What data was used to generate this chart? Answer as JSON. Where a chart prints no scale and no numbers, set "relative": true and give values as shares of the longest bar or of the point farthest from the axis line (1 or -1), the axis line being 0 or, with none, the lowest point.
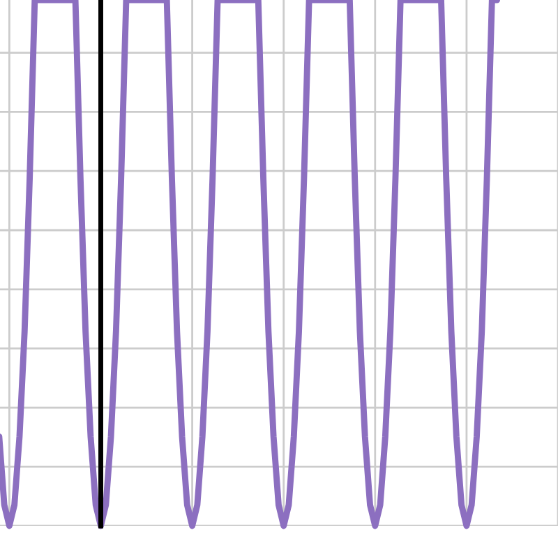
{
  "chart_data": {
    "type": "line",
    "relative": true,
    "grid": true,
    "categories": [
      null,
      null,
      null,
      null,
      null,
      null,
      null,
      null,
      null,
      null,
      null,
      null,
      null,
      null,
      null,
      null,
      null,
      null,
      null,
      null,
      null,
      null,
      null,
      null,
      null,
      null,
      null,
      null,
      null,
      null,
      null,
      null,
      null,
      null,
      null,
      null,
      null,
      null,
      null,
      null,
      null,
      null,
      null,
      null,
      null,
      null,
      null,
      null,
      null,
      null,
      null,
      null,
      null,
      null,
      null,
      null,
      null,
      null,
      null,
      null,
      null,
      null,
      null,
      null,
      null,
      null,
      null,
      null,
      null,
      null,
      null,
      null,
      null,
      null,
      null,
      null,
      null,
      null,
      null,
      null,
      null,
      null,
      null,
      null,
      null,
      null,
      null,
      null,
      null,
      null,
      null,
      null,
      null,
      null,
      null,
      null,
      null,
      null,
      null
    ],
    "series": [
      {
        "color": "#8c6fc0",
        "values": [
          0.17,
          0.04,
          0,
          0.04,
          0.17,
          0.37,
          0.66,
          1,
          1,
          1,
          1,
          1,
          1,
          1,
          1,
          1,
          0.66,
          0.37,
          0.17,
          0.04,
          0,
          0.04,
          0.17,
          0.37,
          0.66,
          1,
          1,
          1,
          1,
          1,
          1,
          1,
          1,
          1,
          0.66,
          0.37,
          0.17,
          0.04,
          0,
          0.04,
          0.17,
          0.37,
          0.66,
          1,
          1,
          1,
          1,
          1,
          1,
          1,
          1,
          1,
          0.66,
          0.37,
          0.17,
          0.04,
          0,
          0.04,
          0.17,
          0.37,
          0.66,
          1,
          1,
          1,
          1,
          1,
          1,
          1,
          1,
          1,
          0.66,
          0.37,
          0.17,
          0.04,
          0,
          0.04,
          0.17,
          0.37,
          0.66,
          1,
          1,
          1,
          1,
          1,
          1,
          1,
          1,
          1,
          0.66,
          0.37,
          0.17,
          0.04,
          0,
          0.04,
          0.17,
          0.37,
          0.66,
          1,
          1
        ]
      }
    ]
  }
}
